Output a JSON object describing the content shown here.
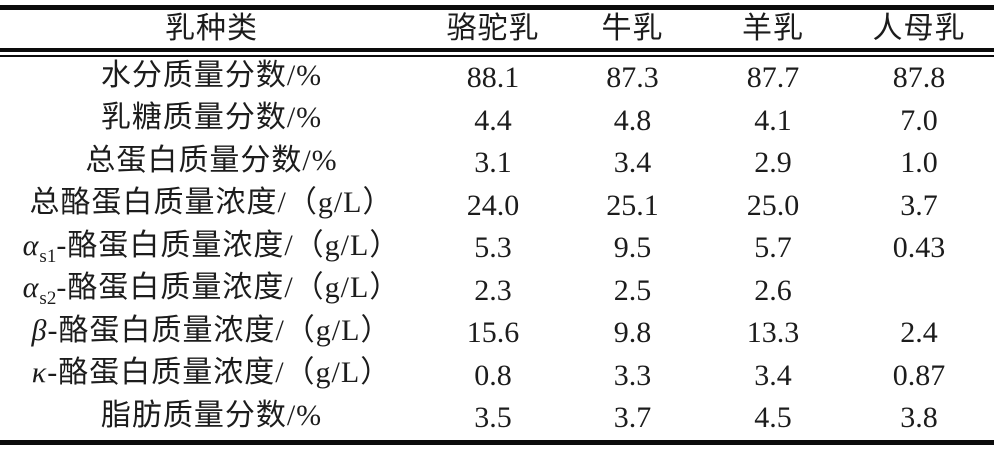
{
  "table": {
    "header": {
      "label": "乳种类",
      "columns": [
        "骆驼乳",
        "牛乳",
        "羊乳",
        "人母乳"
      ]
    },
    "rows": [
      {
        "greek": "",
        "sub": "",
        "label": "水分质量分数/%",
        "values": [
          "88.1",
          "87.3",
          "87.7",
          "87.8"
        ]
      },
      {
        "greek": "",
        "sub": "",
        "label": "乳糖质量分数/%",
        "values": [
          "4.4",
          "4.8",
          "4.1",
          "7.0"
        ]
      },
      {
        "greek": "",
        "sub": "",
        "label": "总蛋白质量分数/%",
        "values": [
          "3.1",
          "3.4",
          "2.9",
          "1.0"
        ]
      },
      {
        "greek": "",
        "sub": "",
        "label": "总酪蛋白质量浓度/（g/L）",
        "values": [
          "24.0",
          "25.1",
          "25.0",
          "3.7"
        ]
      },
      {
        "greek": "α",
        "sub": "s1",
        "label": "-酪蛋白质量浓度/（g/L）",
        "values": [
          "5.3",
          "9.5",
          "5.7",
          "0.43"
        ]
      },
      {
        "greek": "α",
        "sub": "s2",
        "label": "-酪蛋白质量浓度/（g/L）",
        "values": [
          "2.3",
          "2.5",
          "2.6",
          ""
        ]
      },
      {
        "greek": "β",
        "sub": "",
        "label": "-酪蛋白质量浓度/（g/L）",
        "values": [
          "15.6",
          "9.8",
          "13.3",
          "2.4"
        ]
      },
      {
        "greek": "κ",
        "sub": "",
        "label": "-酪蛋白质量浓度/（g/L）",
        "values": [
          "0.8",
          "3.3",
          "3.4",
          "0.87"
        ]
      },
      {
        "greek": "",
        "sub": "",
        "label": "脂肪质量分数/%",
        "values": [
          "3.5",
          "3.7",
          "4.5",
          "3.8"
        ]
      }
    ]
  },
  "colors": {
    "rule": "#0c0c0c",
    "text": "#1c1c1c",
    "background": "#ffffff"
  }
}
